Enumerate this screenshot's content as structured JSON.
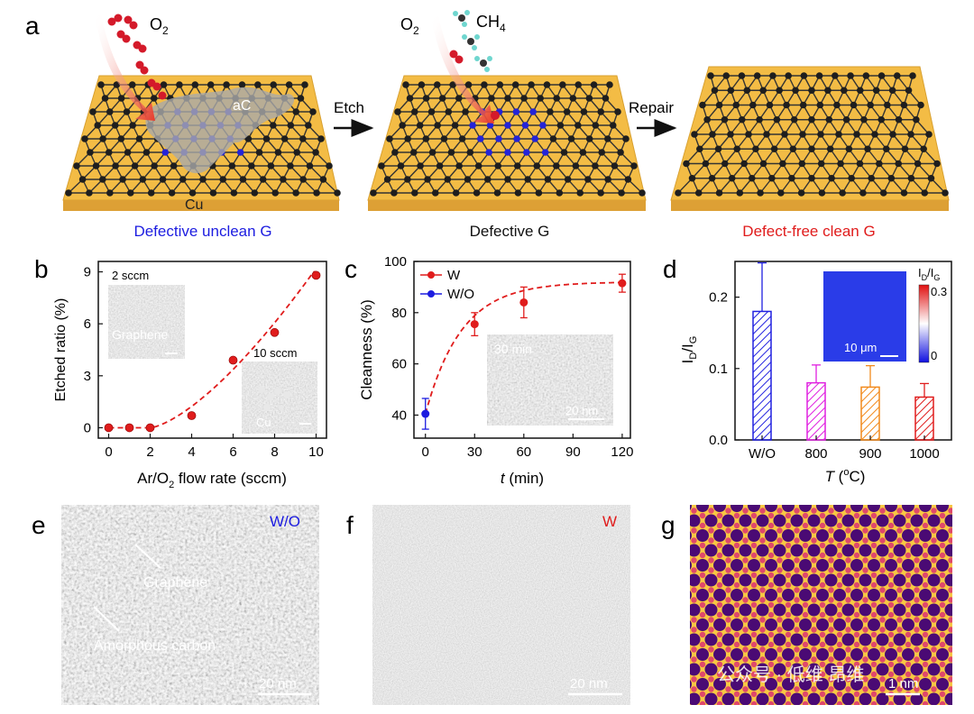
{
  "panels": {
    "a": {
      "label": "a",
      "captions": [
        "Defective unclean G",
        "Defective G",
        "Defect-free clean G"
      ],
      "caption_colors": [
        "#1c1ce0",
        "#111111",
        "#e01c1c"
      ],
      "steps": [
        "Etch",
        "Repair"
      ],
      "gases": {
        "o2": "O",
        "o2_sub": "2",
        "ch4": "CH",
        "ch4_sub": "4"
      },
      "labels": {
        "ac": "aC",
        "cu": "Cu"
      },
      "colors": {
        "substrate": "#f3bc45",
        "atom": "#222222",
        "defect": "#2424d8",
        "oxygen": "#d41a2a"
      }
    },
    "b": {
      "label": "b",
      "inset1": "2 sccm",
      "inset1_text": "Graphene",
      "inset2": "10 sccm",
      "inset2_text": "Cu"
    },
    "c": {
      "label": "c",
      "inset": "30 min",
      "scale": "20 nm"
    },
    "d": {
      "label": "d",
      "inset_title_i": "I",
      "inset_title_d": "D",
      "inset_title_g": "G",
      "cbar_max": "0.3",
      "cbar_min": "0",
      "scale": "10 μm"
    },
    "e": {
      "label": "e",
      "tag": "W/O",
      "tag_color": "#1c1ce0",
      "graphene": "Graphene",
      "amorphous": "Amorphous carbon",
      "scale": "20 nm"
    },
    "f": {
      "label": "f",
      "tag": "W",
      "tag_color": "#e01c1c",
      "scale": "20 nm"
    },
    "g": {
      "label": "g",
      "scale": "1 nm"
    },
    "watermark": "公众号 · 低维 昂维"
  },
  "chart_data": [
    {
      "id": "b",
      "type": "scatter",
      "x": [
        0,
        1,
        2,
        4,
        6,
        8,
        10
      ],
      "y": [
        0.0,
        0.0,
        0.0,
        0.7,
        3.9,
        5.5,
        8.8
      ],
      "xlabel_pre": "Ar/O",
      "xlabel_sub": "2",
      "xlabel_post": " flow rate (sccm)",
      "ylabel": "Etched ratio (%)",
      "xlim": [
        -0.5,
        10.5
      ],
      "ylim": [
        -0.6,
        9.6
      ],
      "xticks": [
        0,
        2,
        4,
        6,
        8,
        10
      ],
      "yticks": [
        0,
        3,
        6,
        9
      ],
      "color": "#e01c1c",
      "fit": "dashed"
    },
    {
      "id": "c",
      "type": "scatter",
      "series": [
        {
          "name": "W",
          "x": [
            30,
            60,
            120
          ],
          "y": [
            75.5,
            84,
            91.5
          ],
          "err": [
            4.5,
            6,
            3.5
          ],
          "color": "#e01c1c"
        },
        {
          "name": "W/O",
          "x": [
            0
          ],
          "y": [
            40.5
          ],
          "err": [
            6
          ],
          "color": "#1c1ce0"
        }
      ],
      "xlabel": "t",
      "xlabel_unit": " (min)",
      "ylabel": "Cleanness (%)",
      "xlim": [
        -7,
        125
      ],
      "ylim": [
        31,
        100
      ],
      "xticks": [
        0,
        30,
        60,
        90,
        120
      ],
      "yticks": [
        40,
        60,
        80,
        100
      ]
    },
    {
      "id": "d",
      "type": "bar",
      "categories": [
        "W/O",
        "800",
        "900",
        "1000"
      ],
      "values": [
        0.18,
        0.08,
        0.074,
        0.06
      ],
      "errors": [
        0.068,
        0.025,
        0.03,
        0.019
      ],
      "colors": [
        "#2020e0",
        "#e020e0",
        "#f28a1c",
        "#e01c1c"
      ],
      "xlabel": "T",
      "xlabel_unit": " (",
      "xlabel_deg": "o",
      "xlabel_end": "C)",
      "ylabel_i": "I",
      "ylabel_d": "D",
      "ylabel_g": "G",
      "ylim": [
        0,
        0.25
      ],
      "yticks": [
        "0.0",
        "0.1",
        "0.2"
      ]
    }
  ]
}
